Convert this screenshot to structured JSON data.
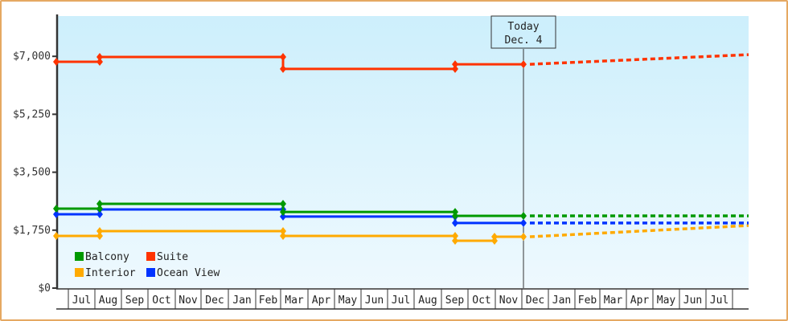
{
  "chart_data": {
    "type": "line",
    "title": "",
    "xlabel": "",
    "ylabel": "",
    "ylim": [
      0,
      8000
    ],
    "y_ticks": [
      "$0",
      "$1,750",
      "$3,500",
      "$5,250",
      "$7,000"
    ],
    "y_tick_values": [
      0,
      1750,
      3500,
      5250,
      7000
    ],
    "x_tick_labels": [
      "Jul",
      "Aug",
      "Sep",
      "Oct",
      "Nov",
      "Dec",
      "Jan",
      "Feb",
      "Mar",
      "Apr",
      "May",
      "Jun",
      "Jul",
      "Aug",
      "Sep",
      "Oct",
      "Nov",
      "Dec",
      "Jan",
      "Feb",
      "Mar",
      "Apr",
      "May",
      "Jun",
      "Jul"
    ],
    "today_marker": {
      "line1": "Today",
      "line2": "Dec. 4"
    },
    "legend": [
      "Balcony",
      "Suite",
      "Interior",
      "Ocean View"
    ],
    "legend_position": "lower-left inside",
    "grid": false,
    "line_style": "step; solid for history, dotted for forecast after Today",
    "series": [
      {
        "name": "Suite",
        "color": "#ff3300",
        "history": [
          [
            "Jul (start)",
            6835
          ],
          [
            "Aug",
            6980
          ],
          [
            "Mar",
            6620
          ],
          [
            "Sep",
            6760
          ],
          [
            "Today (Dec 4)",
            6760
          ]
        ],
        "forecast_end": [
          "Jul (end)",
          7050
        ]
      },
      {
        "name": "Balcony",
        "color": "#009900",
        "history": [
          [
            "Jul (start)",
            2400
          ],
          [
            "Aug",
            2545
          ],
          [
            "Mar",
            2300
          ],
          [
            "Sep",
            2180
          ],
          [
            "Today (Dec 4)",
            2180
          ]
        ],
        "forecast_end": [
          "Jul (end)",
          2180
        ]
      },
      {
        "name": "Ocean View",
        "color": "#0033ff",
        "history": [
          [
            "Jul (start)",
            2230
          ],
          [
            "Aug",
            2375
          ],
          [
            "Mar",
            2160
          ],
          [
            "Sep",
            1965
          ],
          [
            "Today (Dec 4)",
            1965
          ]
        ],
        "forecast_end": [
          "Jul (end)",
          1965
        ]
      },
      {
        "name": "Interior",
        "color": "#ffaa00",
        "history": [
          [
            "Jul (start)",
            1575
          ],
          [
            "Aug",
            1720
          ],
          [
            "Mar",
            1575
          ],
          [
            "Sep",
            1430
          ],
          [
            "Oct",
            1550
          ],
          [
            "Today (Dec 4)",
            1550
          ]
        ],
        "forecast_end": [
          "Jul (end)",
          1890
        ]
      }
    ]
  },
  "colors": {
    "frame_border": "#e5a862",
    "plot_bg_top": "#cdeffc",
    "plot_bg_bottom": "#eef9fe",
    "axis": "#333333"
  }
}
